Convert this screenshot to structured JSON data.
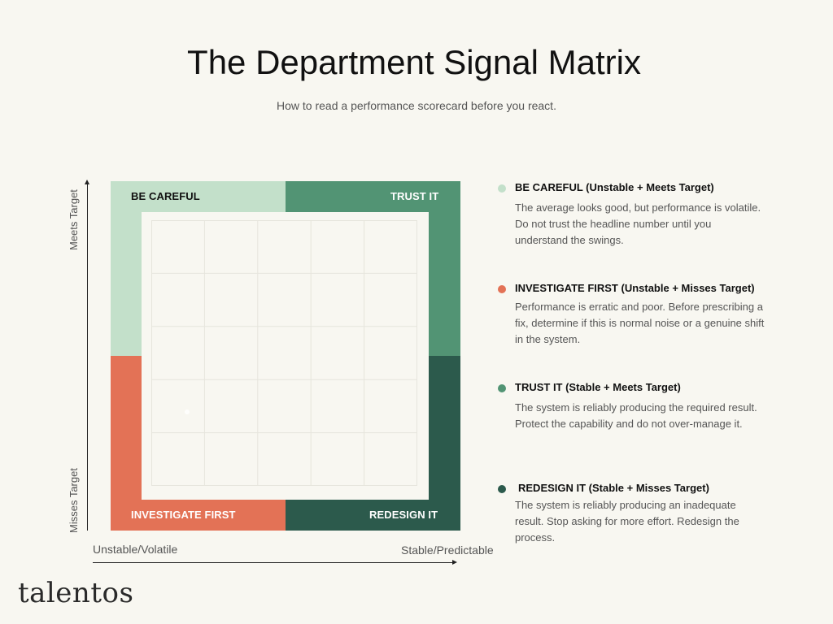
{
  "header": {
    "title": "The Department Signal Matrix",
    "subtitle": "How to read a performance scorecard before you react."
  },
  "axes": {
    "y_top": "Meets Target",
    "y_bottom": "Misses Target",
    "x_left": "Unstable/Volatile",
    "x_right": "Stable/Predictable"
  },
  "quadrants": {
    "top_left": {
      "label": "BE CAREFUL",
      "color": "#c3e0ca"
    },
    "top_right": {
      "label": "TRUST IT",
      "color": "#529474"
    },
    "bottom_left": {
      "label": "INVESTIGATE FIRST",
      "color": "#e37256"
    },
    "bottom_right": {
      "label": "REDESIGN IT",
      "color": "#2c5a4c"
    }
  },
  "legend": [
    {
      "title": "BE CAREFUL (Unstable + Meets Target)",
      "color": "#c3e0ca",
      "description": "The average looks good, but performance is volatile. Do not trust the headline number until you understand the swings."
    },
    {
      "title": "INVESTIGATE FIRST (Unstable + Misses Target)",
      "color": "#e37256",
      "description": "Performance is erratic and poor. Before prescribing a fix, determine if this is normal noise or a genuine shift in the system."
    },
    {
      "title": "TRUST IT (Stable + Meets Target)",
      "color": "#529474",
      "description": "The system is reliably producing the required result. Protect the capability and do not over-manage it."
    },
    {
      "title": "REDESIGN IT (Stable + Misses Target)",
      "color": "#2c5a4c",
      "description": "The system is reliably producing an inadequate result. Stop asking for more effort. Redesign the process."
    }
  ],
  "brand": "talentos"
}
